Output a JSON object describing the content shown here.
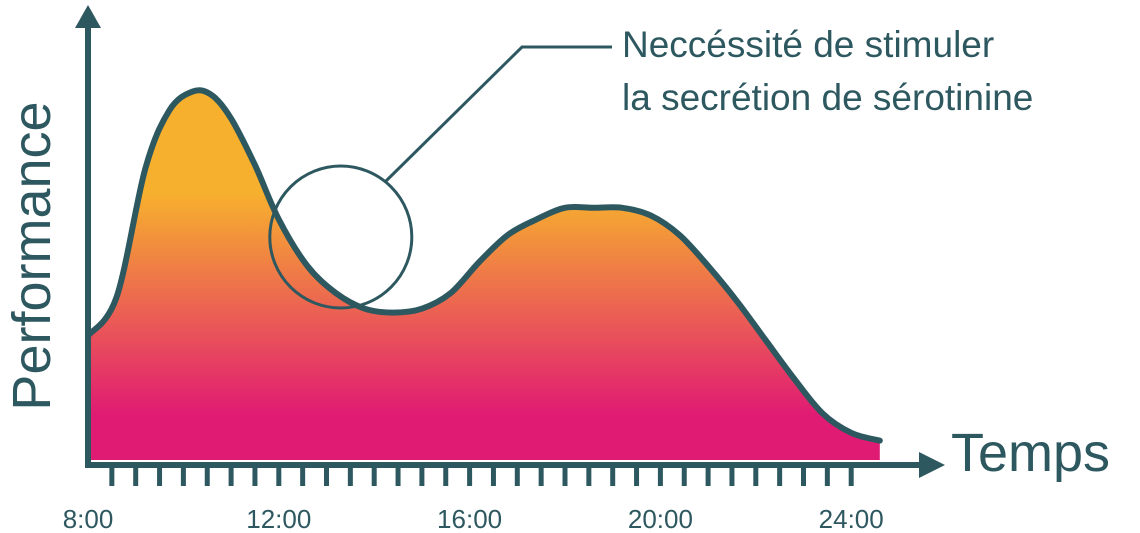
{
  "chart_data": {
    "type": "area",
    "title": "",
    "xlabel": "Temps",
    "ylabel": "Performance",
    "x_ticks": [
      "8:00",
      "12:00",
      "16:00",
      "20:00",
      "24:00"
    ],
    "x_tick_hours": [
      8,
      12,
      16,
      20,
      24
    ],
    "xlim_hours": [
      8,
      24.8
    ],
    "ylim": [
      0,
      100
    ],
    "grid": false,
    "series": [
      {
        "x_hours": [
          8,
          8.6,
          9.2,
          9.7,
          10.2,
          10.6,
          11.0,
          11.5,
          12.0,
          12.6,
          13.2,
          13.8,
          14.4,
          15.0,
          15.6,
          16.2,
          16.8,
          17.4,
          18.0,
          18.6,
          19.2,
          19.8,
          20.4,
          21.0,
          21.6,
          22.2,
          22.8,
          23.4,
          24.0,
          24.6
        ],
        "y": [
          32,
          42,
          75,
          90,
          95,
          94,
          88,
          76,
          62,
          50,
          43,
          39,
          38,
          39,
          43,
          51,
          58,
          62,
          65,
          65,
          65,
          63,
          58,
          50,
          41,
          31,
          21,
          12,
          7,
          5
        ]
      }
    ],
    "colors": {
      "line": "#2e5860",
      "gradient_top": "#f7b02e",
      "gradient_bottom": "#e01b73",
      "text": "#2e5860"
    },
    "annotation": {
      "lines": [
        "Neccéssité de stimuler",
        "la secrétion de sérotinine"
      ],
      "circle_center_hour": 13.3
    }
  }
}
